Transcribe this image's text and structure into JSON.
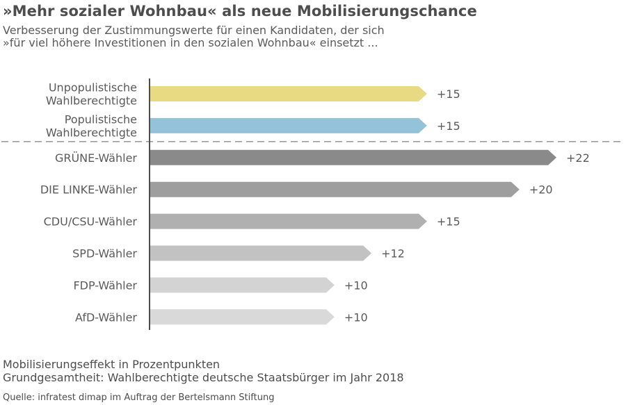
{
  "title": "»Mehr sozialer Wohnbau« als neue Mobilisierungschance",
  "subtitle_lines": [
    "Verbesserung der Zustimmungswerte für einen Kandidaten, der sich",
    "»für viel höhere Investitionen in den sozialen Wohnbau« einsetzt ..."
  ],
  "chart_data": {
    "type": "bar",
    "orientation": "horizontal",
    "categories": [
      [
        "Unpopulistische",
        "Wahlberechtigte"
      ],
      [
        "Populistische",
        "Wahlberechtigte"
      ],
      [
        "GRÜNE-Wähler"
      ],
      [
        "DIE LINKE-Wähler"
      ],
      [
        "CDU/CSU-Wähler"
      ],
      [
        "SPD-Wähler"
      ],
      [
        "FDP-Wähler"
      ],
      [
        "AfD-Wähler"
      ]
    ],
    "values": [
      15,
      15,
      22,
      20,
      15,
      12,
      10,
      10
    ],
    "value_labels": [
      "+15",
      "+15",
      "+22",
      "+20",
      "+15",
      "+12",
      "+10",
      "+10"
    ],
    "colors": [
      "#e8d983",
      "#94c3d9",
      "#8a8a8a",
      "#9e9e9e",
      "#b0b0b0",
      "#c2c2c2",
      "#d3d3d3",
      "#d9d9d9"
    ],
    "separator_after_index": 1,
    "xlim": [
      0,
      22
    ],
    "grid": false,
    "legend": "none"
  },
  "notes": [
    "Mobilisierungseffekt in Prozentpunkten",
    "Grundgesamtheit: Wahlberechtigte deutsche Staatsbürger im Jahr 2018"
  ],
  "source": "Quelle: infratest dimap im Auftrag der Bertelsmann Stiftung"
}
